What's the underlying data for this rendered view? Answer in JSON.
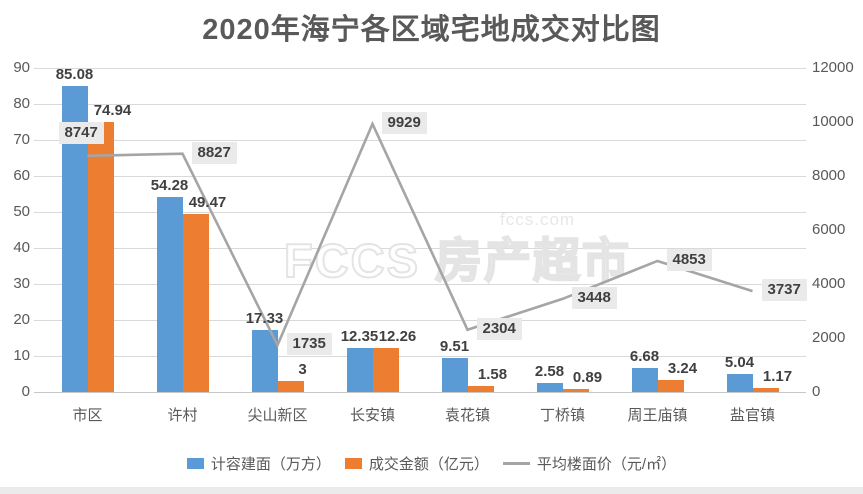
{
  "title": "2020年海宁各区域宅地成交对比图",
  "watermark": {
    "logo": "FCCS",
    "text": "房产超市",
    "domain": "fccs.com"
  },
  "colors": {
    "bar_blue": "#5B9BD5",
    "bar_orange": "#ED7D31",
    "line_gray": "#A5A5A5",
    "grid": "#D9D9D9",
    "axis_text": "#595959",
    "data_label": "#404040",
    "line_label_bg": "#EAEAEA",
    "title_text": "#595959"
  },
  "chart_data": {
    "type": "bar",
    "subtype": "grouped-bars-with-line",
    "title": "2020年海宁各区域宅地成交对比图",
    "categories": [
      "市区",
      "许村",
      "尖山新区",
      "长安镇",
      "袁花镇",
      "丁桥镇",
      "周王庙镇",
      "盐官镇"
    ],
    "series": [
      {
        "name": "计容建面（万方）",
        "type": "bar",
        "axis": "left",
        "color": "#5B9BD5",
        "values": [
          85.08,
          54.28,
          17.33,
          12.35,
          9.51,
          2.58,
          6.68,
          5.04
        ]
      },
      {
        "name": "成交金额（亿元）",
        "type": "bar",
        "axis": "left",
        "color": "#ED7D31",
        "values": [
          74.94,
          49.47,
          3,
          12.26,
          1.58,
          0.89,
          3.24,
          1.17
        ]
      },
      {
        "name": "平均楼面价（元/㎡）",
        "type": "line",
        "axis": "right",
        "color": "#A5A5A5",
        "values": [
          8747,
          8827,
          1735,
          9929,
          2304,
          3448,
          4853,
          3737
        ]
      }
    ],
    "left_axis": {
      "min": 0,
      "max": 90,
      "step": 10,
      "ticks": [
        0,
        10,
        20,
        30,
        40,
        50,
        60,
        70,
        80,
        90
      ]
    },
    "right_axis": {
      "min": 0,
      "max": 12000,
      "step": 2000,
      "ticks": [
        0,
        2000,
        4000,
        6000,
        8000,
        10000,
        12000
      ]
    },
    "grid": true,
    "legend_position": "bottom",
    "data_labels": true
  }
}
